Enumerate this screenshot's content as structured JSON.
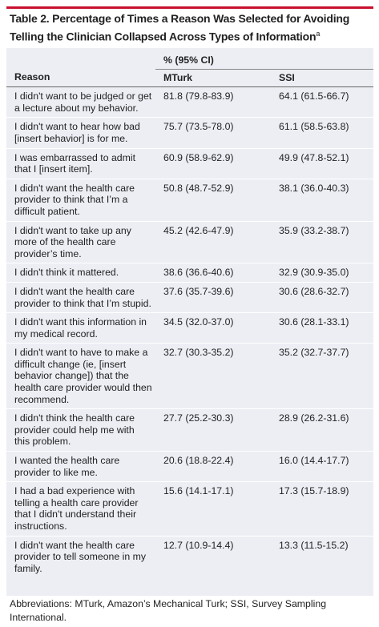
{
  "header": {
    "title": "Table 2. Percentage of Times a Reason Was Selected for Avoiding Telling the Clinician Collapsed Across Types of Information",
    "title_marker": "a"
  },
  "table": {
    "group_header": "% (95% CI)",
    "columns": [
      "Reason",
      "MTurk",
      "SSI"
    ],
    "rows": [
      [
        "I didn't want to be judged or get a lecture about my behavior.",
        "81.8 (79.8-83.9)",
        "64.1 (61.5-66.7)"
      ],
      [
        "I didn't want to hear how bad [insert behavior] is for me.",
        "75.7 (73.5-78.0)",
        "61.1 (58.5-63.8)"
      ],
      [
        "I was embarrassed to admit that I [insert item].",
        "60.9 (58.9-62.9)",
        "49.9 (47.8-52.1)"
      ],
      [
        "I didn't want the health care provider to think that I’m a difficult patient.",
        "50.8 (48.7-52.9)",
        "38.1 (36.0-40.3)"
      ],
      [
        "I didn't want to take up any more of the health care provider’s time.",
        "45.2 (42.6-47.9)",
        "35.9 (33.2-38.7)"
      ],
      [
        "I didn't think it mattered.",
        "38.6 (36.6-40.6)",
        "32.9 (30.9-35.0)"
      ],
      [
        "I didn't want the health care provider to think that I’m stupid.",
        "37.6 (35.7-39.6)",
        "30.6 (28.6-32.7)"
      ],
      [
        "I didn't want this information in my medical record.",
        "34.5 (32.0-37.0)",
        "30.6 (28.1-33.1)"
      ],
      [
        "I didn't want to have to make a difficult change (ie, [insert behavior change]) that the health care provider would then recommend.",
        "32.7 (30.3-35.2)",
        "35.2 (32.7-37.7)"
      ],
      [
        "I didn't think the health care provider could help me with this problem.",
        "27.7 (25.2-30.3)",
        "28.9 (26.2-31.6)"
      ],
      [
        "I wanted the health care provider to like me.",
        "20.6 (18.8-22.4)",
        "16.0 (14.4-17.7)"
      ],
      [
        "I had a bad experience with telling a health care provider that I didn't understand their instructions.",
        "15.6 (14.1-17.1)",
        "17.3 (15.7-18.9)"
      ],
      [
        "I didn't want the health care provider to tell someone in my family.",
        "12.7 (10.9-14.4)",
        "13.3 (11.5-15.2)"
      ]
    ]
  },
  "footer": {
    "note": "Abbreviations: MTurk, Amazon’s Mechanical Turk; SSI, Survey Sampling International."
  }
}
